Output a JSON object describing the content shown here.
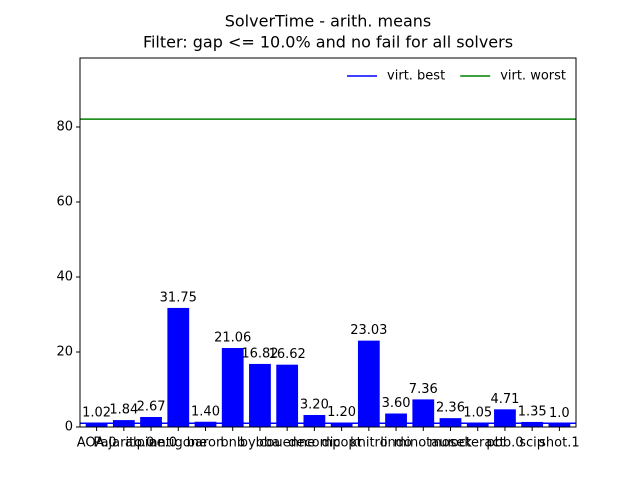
{
  "chart_data": {
    "type": "bar",
    "title": "SolverTime - arith. means",
    "subtitle": "Filter: gap <= 10.0% and no fail for all solvers",
    "categories": [
      "AOA.0",
      "Pajarito.0",
      "alpine.0",
      "antigone",
      "baron",
      "bnb",
      "bybba",
      "couenne",
      "decomp",
      "dicopt",
      "knitro",
      "lindo",
      "minotaur",
      "mosek",
      "octeract",
      "pbb.0",
      "scip",
      "shot.1"
    ],
    "values": [
      1.02,
      1.84,
      2.67,
      31.75,
      1.4,
      21.06,
      16.82,
      16.62,
      3.2,
      1.2,
      23.03,
      3.6,
      7.36,
      2.36,
      1.05,
      4.71,
      1.35,
      1.0
    ],
    "value_labels": [
      "1.02",
      "1.84",
      "2.67",
      "31.75",
      "1.40",
      "21.06",
      "16.82",
      "16.62",
      "3.20",
      "1.20",
      "23.03",
      "3.60",
      "7.36",
      "2.36",
      "1.05",
      "4.71",
      "1.35",
      "1.0"
    ],
    "color": "#0000ff",
    "lines": [
      {
        "name": "virt. best",
        "color": "#0000ff",
        "value": 1.0
      },
      {
        "name": "virt. worst",
        "color": "#008000",
        "value": 82.1
      }
    ],
    "legend": "upper right",
    "ylim": [
      0,
      98.4
    ],
    "yticks": [
      0,
      20,
      40,
      60,
      80
    ]
  }
}
